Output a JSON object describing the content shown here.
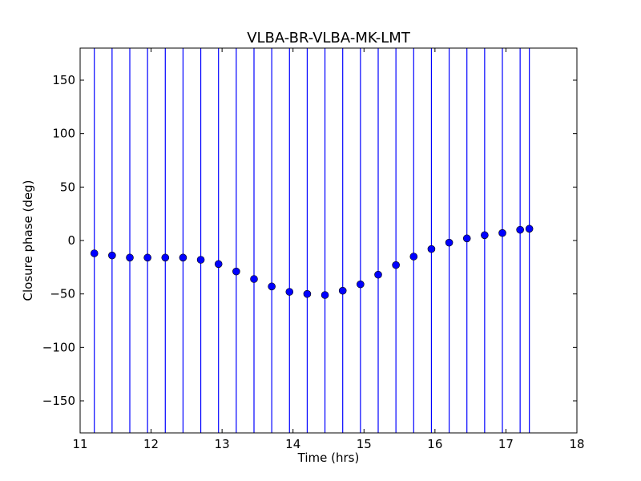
{
  "chart_data": {
    "type": "scatter",
    "title": "VLBA-BR-VLBA-MK-LMT",
    "xlabel": "Time (hrs)",
    "ylabel": "Closure phase (deg)",
    "xlim": [
      11,
      18
    ],
    "ylim": [
      -180,
      180
    ],
    "x_ticks": [
      11,
      12,
      13,
      14,
      15,
      16,
      17,
      18
    ],
    "y_ticks": [
      -150,
      -100,
      -50,
      0,
      50,
      100,
      150
    ],
    "x_tick_labels": [
      "11",
      "12",
      "13",
      "14",
      "15",
      "16",
      "17",
      "18"
    ],
    "y_tick_labels": [
      "−150",
      "−100",
      "−50",
      "0",
      "50",
      "100",
      "150"
    ],
    "grid": false,
    "error_bars": "vertical lines spanning full y range",
    "color": "#0000ff",
    "x": [
      11.2,
      11.45,
      11.7,
      11.95,
      12.2,
      12.45,
      12.7,
      12.95,
      13.2,
      13.45,
      13.7,
      13.95,
      14.2,
      14.45,
      14.7,
      14.95,
      15.2,
      15.45,
      15.7,
      15.95,
      16.2,
      16.45,
      16.7,
      16.95,
      17.2,
      17.33
    ],
    "y": [
      -12,
      -14,
      -16,
      -16,
      -16,
      -16,
      -18,
      -22,
      -29,
      -36,
      -43,
      -48,
      -50,
      -51,
      -47,
      -41,
      -32,
      -23,
      -15,
      -8,
      -2,
      2,
      5,
      7,
      10,
      11
    ]
  }
}
